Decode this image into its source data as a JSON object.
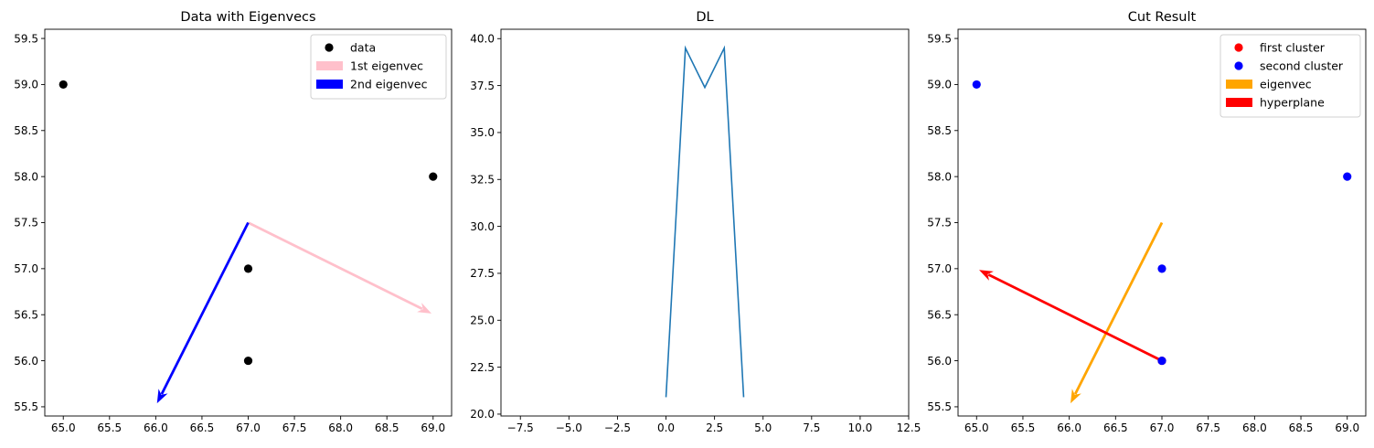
{
  "chart_data": [
    {
      "type": "scatter",
      "title": "Data with Eigenvecs",
      "xlabel": "",
      "ylabel": "",
      "xlim": [
        64.8,
        69.2
      ],
      "ylim": [
        55.4,
        59.6
      ],
      "xticks": [
        "65.0",
        "65.5",
        "66.0",
        "66.5",
        "67.0",
        "67.5",
        "68.0",
        "68.5",
        "69.0"
      ],
      "yticks": [
        "55.5",
        "56.0",
        "56.5",
        "57.0",
        "57.5",
        "58.0",
        "58.5",
        "59.0",
        "59.5"
      ],
      "points": [
        {
          "series": "data",
          "x": 65,
          "y": 59,
          "color": "#000000"
        },
        {
          "series": "data",
          "x": 69,
          "y": 58,
          "color": "#000000"
        },
        {
          "series": "data",
          "x": 67,
          "y": 57,
          "color": "#000000"
        },
        {
          "series": "data",
          "x": 67,
          "y": 56,
          "color": "#000000"
        }
      ],
      "arrows": [
        {
          "name": "1st eigenvec",
          "x0": 67,
          "y0": 57.5,
          "x1": 68.97,
          "y1": 56.52,
          "color": "#ffc0cb"
        },
        {
          "name": "2nd eigenvec",
          "x0": 67,
          "y0": 57.5,
          "x1": 66.02,
          "y1": 55.55,
          "color": "#0000ff"
        }
      ],
      "legend": {
        "placement": "top-right",
        "entries": [
          {
            "label": "data",
            "kind": "marker",
            "color": "#000000"
          },
          {
            "label": "1st eigenvec",
            "kind": "patch",
            "color": "#ffc0cb"
          },
          {
            "label": "2nd eigenvec",
            "kind": "patch",
            "color": "#0000ff"
          }
        ]
      }
    },
    {
      "type": "line",
      "title": "DL",
      "xlabel": "",
      "ylabel": "",
      "xlim": [
        -8.5,
        12.5
      ],
      "ylim": [
        19.9,
        40.5
      ],
      "xticks": [
        "−7.5",
        "−5.0",
        "−2.5",
        "0.0",
        "2.5",
        "5.0",
        "7.5",
        "10.0",
        "12.5"
      ],
      "yticks": [
        "20.0",
        "22.5",
        "25.0",
        "27.5",
        "30.0",
        "32.5",
        "35.0",
        "37.5",
        "40.0"
      ],
      "series": [
        {
          "x": [
            0,
            1,
            2,
            3,
            4
          ],
          "y": [
            20.9,
            39.5,
            37.4,
            39.5,
            20.9
          ],
          "color": "#1f77b4"
        }
      ]
    },
    {
      "type": "scatter",
      "title": "Cut Result",
      "xlabel": "",
      "ylabel": "",
      "xlim": [
        64.8,
        69.2
      ],
      "ylim": [
        55.4,
        59.6
      ],
      "xticks": [
        "65.0",
        "65.5",
        "66.0",
        "66.5",
        "67.0",
        "67.5",
        "68.0",
        "68.5",
        "69.0"
      ],
      "yticks": [
        "55.5",
        "56.0",
        "56.5",
        "57.0",
        "57.5",
        "58.0",
        "58.5",
        "59.0",
        "59.5"
      ],
      "points": [
        {
          "series": "first cluster",
          "x": 67,
          "y": 56,
          "color": "#ff0000"
        },
        {
          "series": "second cluster",
          "x": 65,
          "y": 59,
          "color": "#0000ff"
        },
        {
          "series": "second cluster",
          "x": 69,
          "y": 58,
          "color": "#0000ff"
        },
        {
          "series": "second cluster",
          "x": 67,
          "y": 57,
          "color": "#0000ff"
        },
        {
          "series": "second cluster",
          "x": 67,
          "y": 56,
          "color": "#0000ff"
        }
      ],
      "arrows": [
        {
          "name": "eigenvec",
          "x0": 67,
          "y0": 57.5,
          "x1": 66.02,
          "y1": 55.55,
          "color": "#ffa500"
        },
        {
          "name": "hyperplane",
          "x0": 67,
          "y0": 56,
          "x1": 65.04,
          "y1": 56.98,
          "color": "#ff0000"
        }
      ],
      "legend": {
        "placement": "top-right",
        "entries": [
          {
            "label": "first cluster",
            "kind": "marker",
            "color": "#ff0000"
          },
          {
            "label": "second cluster",
            "kind": "marker",
            "color": "#0000ff"
          },
          {
            "label": "eigenvec",
            "kind": "patch",
            "color": "#ffa500"
          },
          {
            "label": "hyperplane",
            "kind": "patch",
            "color": "#ff0000"
          }
        ]
      }
    }
  ]
}
